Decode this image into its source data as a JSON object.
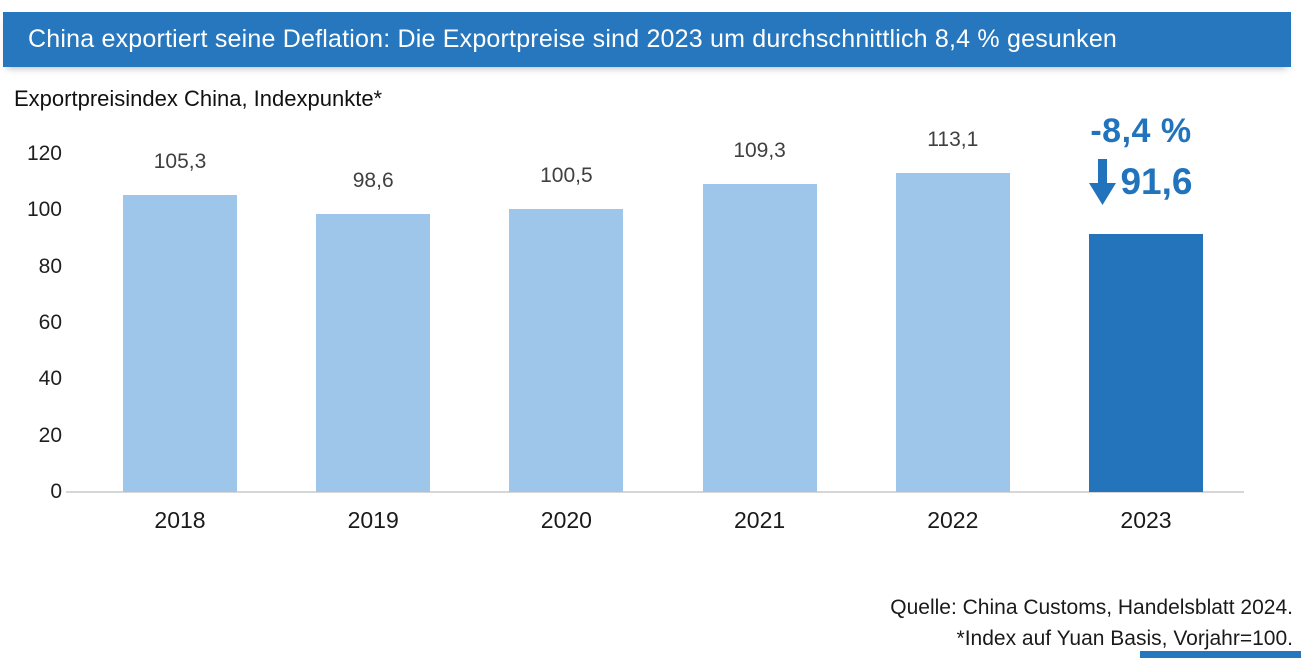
{
  "header": {
    "title": "China exportiert seine Deflation: Die Exportpreise sind 2023 um durchschnittlich 8,4 % gesunken"
  },
  "subtitle": "Exportpreisindex China, Indexpunkte*",
  "chart_data": {
    "type": "bar",
    "title": "Exportpreisindex China, Indexpunkte*",
    "categories": [
      "2018",
      "2019",
      "2020",
      "2021",
      "2022",
      "2023"
    ],
    "values": [
      105.3,
      98.6,
      100.5,
      109.3,
      113.1,
      91.6
    ],
    "value_labels": [
      "105,3",
      "98,6",
      "100,5",
      "109,3",
      "113,1",
      "91,6"
    ],
    "xlabel": "",
    "ylabel": "",
    "ylim": [
      0,
      120
    ],
    "yticks": [
      0,
      20,
      40,
      60,
      80,
      100,
      120
    ],
    "ytick_labels": [
      "0",
      "20",
      "40",
      "60",
      "80",
      "100",
      "120"
    ],
    "grid": false,
    "legend": false,
    "highlight_index": 5,
    "bar_colors": [
      "#9DC6EA",
      "#9DC6EA",
      "#9DC6EA",
      "#9DC6EA",
      "#9DC6EA",
      "#2474BC"
    ]
  },
  "annotation": {
    "change_label": "-8,4 %",
    "arrow_icon": "down-arrow-icon",
    "value_label": "91,6"
  },
  "footer": {
    "source": "Quelle: China Customs, Handelsblatt 2024.",
    "footnote": "*Index auf Yuan Basis, Vorjahr=100."
  },
  "colors": {
    "title_bg": "#2777BE",
    "bar_light": "#9DC6EA",
    "bar_dark": "#2474BC",
    "annotation_blue": "#2173BC",
    "value_label_gray": "#404040",
    "axis_line": "#D6D6D6",
    "accent_strip": "#2777BE"
  }
}
